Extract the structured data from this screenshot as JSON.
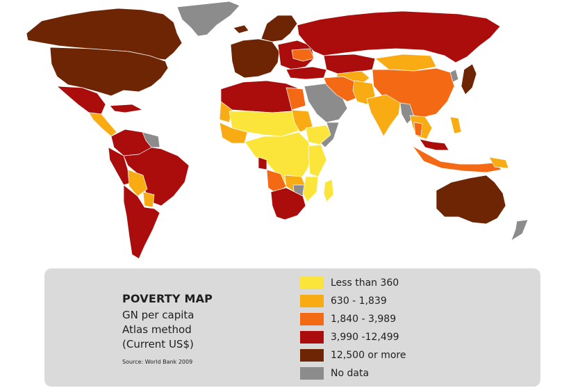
{
  "legend": {
    "title": "POVERTY MAP",
    "subtitle_lines": [
      "GN per capita",
      "Atlas method",
      "(Current US$)"
    ],
    "source": "Source: World Bank 2009",
    "items": [
      {
        "label": "Less than 360",
        "color": "#fbe53b"
      },
      {
        "label": "630 - 1,839",
        "color": "#f9ab14"
      },
      {
        "label": "1,840 - 3,989",
        "color": "#f46a14"
      },
      {
        "label": "3,990 -12,499",
        "color": "#ab0c0c"
      },
      {
        "label": "12,500 or more",
        "color": "#6e2504"
      },
      {
        "label": "No data",
        "color": "#8c8c8c"
      }
    ]
  },
  "map_colors": {
    "less_than_360": "#fbe53b",
    "c630_1839": "#f9ab14",
    "c1840_3989": "#f46a14",
    "c3990_12499": "#ab0c0c",
    "c12500_plus": "#6e2504",
    "no_data": "#8c8c8c"
  }
}
